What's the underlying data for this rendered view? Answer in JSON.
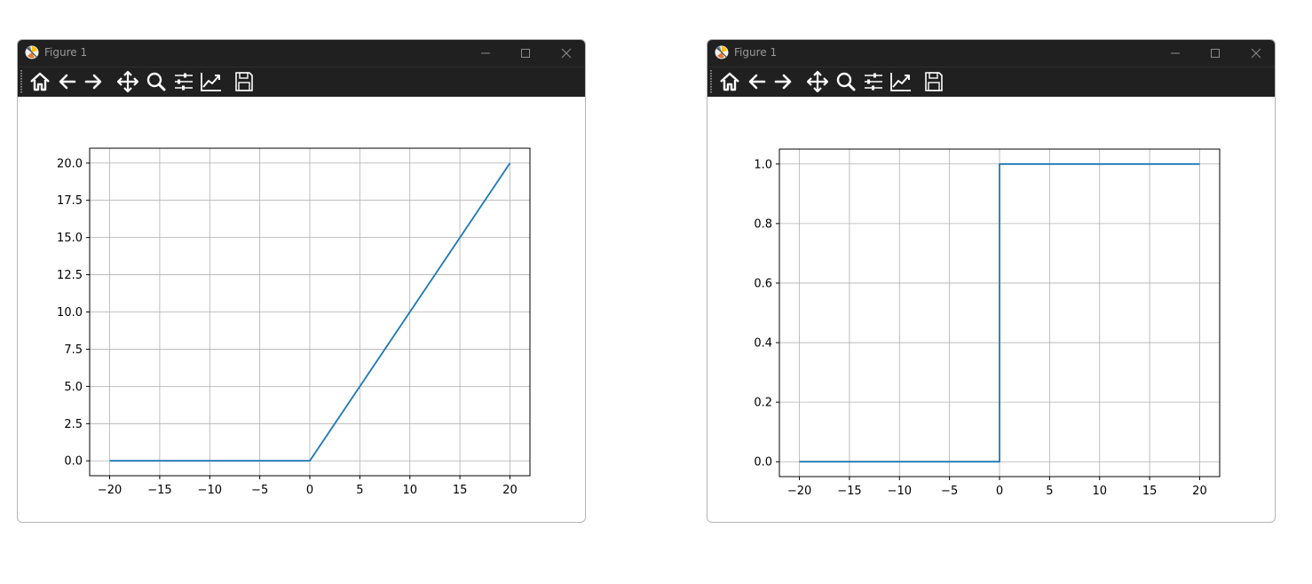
{
  "colors": {
    "line": "#1f77b4",
    "grid": "#b0b0b0",
    "titlebar": "#202020"
  },
  "windows": [
    {
      "title": "Figure 1",
      "toolbar": [
        "home-icon",
        "back-arrow-icon",
        "forward-arrow-icon",
        "pan-icon",
        "zoom-icon",
        "configure-subplots-icon",
        "edit-axes-icon",
        "save-icon"
      ],
      "window_controls": [
        "minimize-icon",
        "maximize-icon",
        "close-icon"
      ]
    },
    {
      "title": "Figure 1",
      "toolbar": [
        "home-icon",
        "back-arrow-icon",
        "forward-arrow-icon",
        "pan-icon",
        "zoom-icon",
        "configure-subplots-icon",
        "edit-axes-icon",
        "save-icon"
      ],
      "window_controls": [
        "minimize-icon",
        "maximize-icon",
        "close-icon"
      ]
    }
  ],
  "chart_data": [
    {
      "type": "line",
      "title": "",
      "xlabel": "",
      "ylabel": "",
      "grid": true,
      "xlim": [
        -22,
        22
      ],
      "ylim": [
        -1,
        21
      ],
      "xticks": [
        -20,
        -15,
        -10,
        -5,
        0,
        5,
        10,
        15,
        20
      ],
      "xtick_labels": [
        "−20",
        "−15",
        "−10",
        "−5",
        "0",
        "5",
        "10",
        "15",
        "20"
      ],
      "yticks": [
        0,
        2.5,
        5,
        7.5,
        10,
        12.5,
        15,
        17.5,
        20
      ],
      "ytick_labels": [
        "0.0",
        "2.5",
        "5.0",
        "7.5",
        "10.0",
        "12.5",
        "15.0",
        "17.5",
        "20.0"
      ],
      "series": [
        {
          "x": [
            -20,
            0,
            20
          ],
          "y": [
            0,
            0,
            20
          ]
        }
      ]
    },
    {
      "type": "line",
      "title": "",
      "xlabel": "",
      "ylabel": "",
      "grid": true,
      "xlim": [
        -22,
        22
      ],
      "ylim": [
        -0.05,
        1.05
      ],
      "xticks": [
        -20,
        -15,
        -10,
        -5,
        0,
        5,
        10,
        15,
        20
      ],
      "xtick_labels": [
        "−20",
        "−15",
        "−10",
        "−5",
        "0",
        "5",
        "10",
        "15",
        "20"
      ],
      "yticks": [
        0,
        0.2,
        0.4,
        0.6,
        0.8,
        1.0
      ],
      "ytick_labels": [
        "0.0",
        "0.2",
        "0.4",
        "0.6",
        "0.8",
        "1.0"
      ],
      "series": [
        {
          "x": [
            -20,
            0,
            0,
            20
          ],
          "y": [
            0,
            0,
            1,
            1
          ]
        }
      ]
    }
  ]
}
